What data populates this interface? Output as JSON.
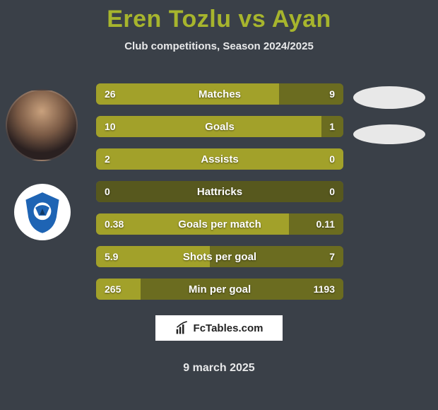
{
  "page": {
    "background_color": "#3a4048",
    "text_color": "#e8e9ea"
  },
  "title": "Eren Tozlu vs Ayan",
  "title_color": "#a7b52d",
  "subtitle": "Club competitions, Season 2024/2025",
  "date": "9 march 2025",
  "logo_text": "FcTables.com",
  "stats": {
    "left_color": "#a2a12a",
    "right_color": "#6b6c20",
    "track_color": "#57581e",
    "rows": [
      {
        "label": "Matches",
        "left": "26",
        "right": "9",
        "left_pct": 74,
        "right_pct": 26
      },
      {
        "label": "Goals",
        "left": "10",
        "right": "1",
        "left_pct": 91,
        "right_pct": 9
      },
      {
        "label": "Assists",
        "left": "2",
        "right": "0",
        "left_pct": 100,
        "right_pct": 0
      },
      {
        "label": "Hattricks",
        "left": "0",
        "right": "0",
        "left_pct": 0,
        "right_pct": 0
      },
      {
        "label": "Goals per match",
        "left": "0.38",
        "right": "0.11",
        "left_pct": 78,
        "right_pct": 22
      },
      {
        "label": "Shots per goal",
        "left": "5.9",
        "right": "7",
        "left_pct": 46,
        "right_pct": 54
      },
      {
        "label": "Min per goal",
        "left": "265",
        "right": "1193",
        "left_pct": 18,
        "right_pct": 82
      }
    ]
  }
}
